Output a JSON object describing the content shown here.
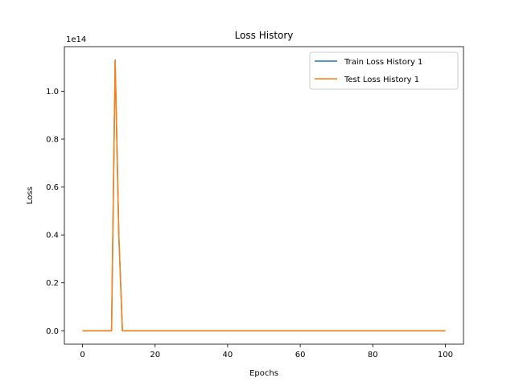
{
  "chart_data": {
    "type": "line",
    "title": "Loss History",
    "xlabel": "Epochs",
    "ylabel": "Loss",
    "y_offset_label": "1e14",
    "y_scale": 100000000000000.0,
    "xlim": [
      -5,
      105
    ],
    "ylim": [
      -5600000000000.0,
      118600000000000.0
    ],
    "x_ticks": [
      0,
      20,
      40,
      60,
      80,
      100
    ],
    "x_tick_labels": [
      "0",
      "20",
      "40",
      "60",
      "80",
      "100"
    ],
    "y_ticks": [
      0,
      20000000000000.0,
      40000000000000.0,
      60000000000000.0,
      80000000000000.0,
      100000000000000.0
    ],
    "y_tick_labels": [
      "0.0",
      "0.2",
      "0.4",
      "0.6",
      "0.8",
      "1.0"
    ],
    "grid": false,
    "legend_position": "top-right",
    "series": [
      {
        "name": "Train Loss History 1",
        "color": "#1f77b4",
        "x": [
          0,
          1,
          2,
          3,
          4,
          5,
          6,
          7,
          8,
          9,
          10,
          11,
          12,
          13,
          14,
          15,
          16,
          17,
          18,
          19,
          20,
          30,
          40,
          50,
          60,
          70,
          80,
          90,
          100
        ],
        "y": [
          0,
          0,
          0,
          0,
          0,
          0,
          0,
          0,
          0,
          113000000000000.0,
          40000000000000.0,
          0,
          0,
          0,
          0,
          0,
          0,
          0,
          0,
          0,
          0,
          0,
          0,
          0,
          0,
          0,
          0,
          0,
          0
        ]
      },
      {
        "name": "Test Loss History 1",
        "color": "#ff7f0e",
        "x": [
          0,
          1,
          2,
          3,
          4,
          5,
          6,
          7,
          8,
          9,
          10,
          11,
          12,
          13,
          14,
          15,
          16,
          17,
          18,
          19,
          20,
          30,
          40,
          50,
          60,
          70,
          80,
          90,
          100
        ],
        "y": [
          0,
          0,
          0,
          0,
          0,
          0,
          0,
          0,
          0,
          113000000000000.0,
          40000000000000.0,
          0,
          0,
          0,
          0,
          0,
          0,
          0,
          0,
          0,
          0,
          0,
          0,
          0,
          0,
          0,
          0,
          0,
          0
        ]
      }
    ]
  }
}
